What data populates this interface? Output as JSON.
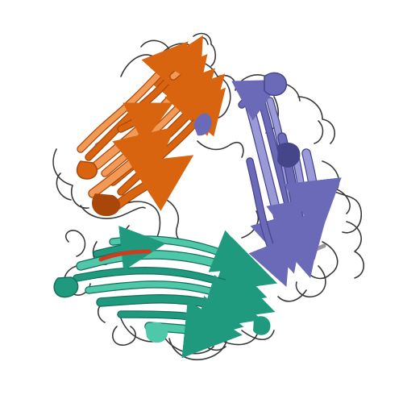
{
  "scene": {
    "type": "protein-ribbon-cartoon",
    "background_color": "#ffffff",
    "coil_color": "#3a3a3a",
    "chains": [
      {
        "id": "orange-chain",
        "color": "#d9640f",
        "shade": "#a9470a",
        "highlight": "#f29a55"
      },
      {
        "id": "blue-chain",
        "color": "#6a6ab8",
        "shade": "#45458a",
        "highlight": "#9a9ad8"
      },
      {
        "id": "teal-chain",
        "color": "#1f9a7e",
        "shade": "#13705a",
        "highlight": "#4fc8aa"
      }
    ],
    "accent_strand_color": "#d03b1e",
    "helix_color": "#9a9a9a"
  }
}
